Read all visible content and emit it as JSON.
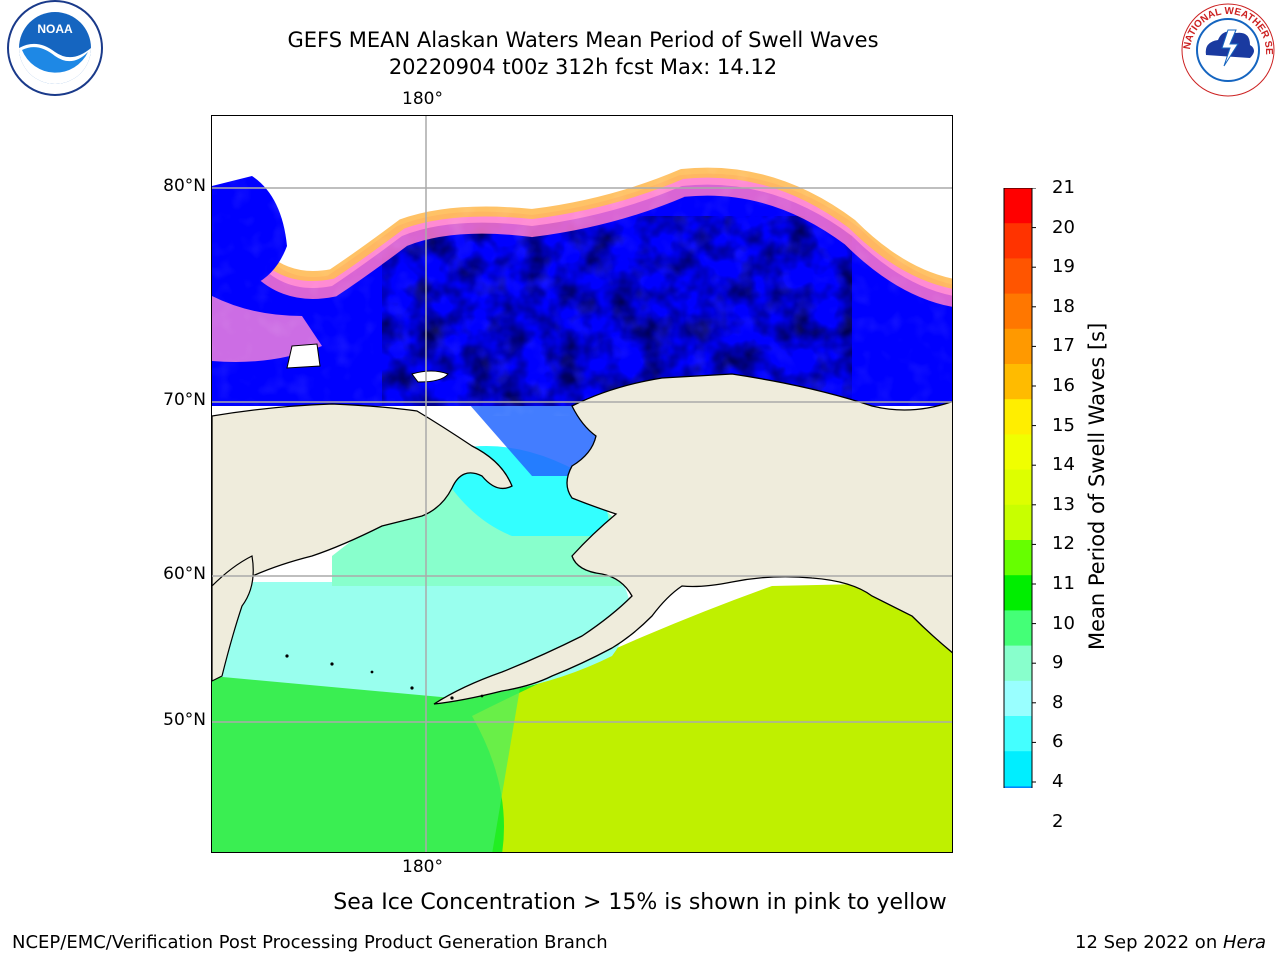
{
  "title_line1": "GEFS MEAN Alaskan Waters Mean Period of Swell Waves",
  "title_line2": "20220904 t00z 312h fcst   Max: 14.12",
  "map": {
    "lon_label_top": "180°",
    "lon_label_bottom": "180°",
    "lat_labels": [
      "80°N",
      "70°N",
      "60°N",
      "50°N"
    ]
  },
  "colorbar": {
    "label": "Mean Period of Swell Waves [s]",
    "ticks": [
      "21",
      "20",
      "19",
      "18",
      "17",
      "16",
      "15",
      "14",
      "13",
      "12",
      "11",
      "10",
      "9",
      "8",
      "6",
      "4",
      "2"
    ],
    "colors": [
      "#ff0000",
      "#ff3300",
      "#ff5500",
      "#ff7700",
      "#ff9900",
      "#ffbb00",
      "#ffee00",
      "#f0ff00",
      "#ddff00",
      "#c8ff00",
      "#66ff00",
      "#00ee00",
      "#44ff77",
      "#88ffcc",
      "#99ffff",
      "#44ffff",
      "#00eeff",
      "#0088ff"
    ],
    "extend_color": "#0000ff"
  },
  "logos": {
    "noaa_text": "NOAA",
    "nws_text": "NATIONAL WEATHER SERVICE"
  },
  "footer_note": "Sea Ice Concentration > 15% is shown in pink to yellow",
  "footer_left": "NCEP/EMC/Verification Post Processing Product Generation Branch",
  "footer_right_date": "12 Sep 2022 on ",
  "footer_right_host": "Hera"
}
